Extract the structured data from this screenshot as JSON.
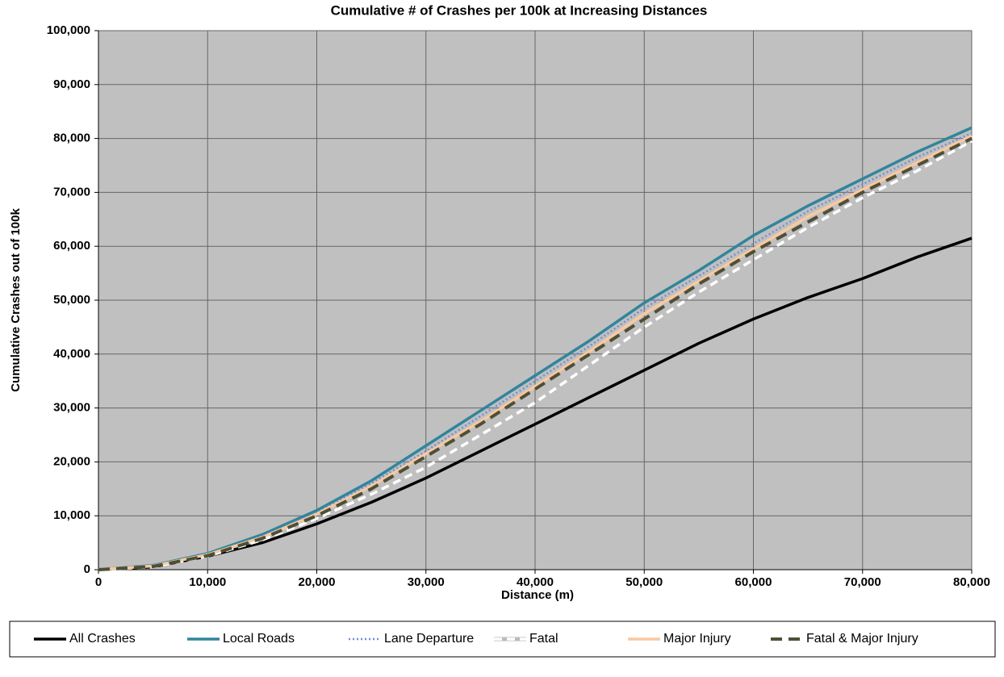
{
  "chart_data": {
    "type": "line",
    "title": "Cumulative # of Crashes per 100k at Increasing Distances",
    "x_label": "Distance (m)",
    "y_label": "Cumulative Crashes out of 100k",
    "x": [
      0,
      5000,
      10000,
      15000,
      20000,
      25000,
      30000,
      35000,
      40000,
      45000,
      50000,
      55000,
      60000,
      65000,
      70000,
      75000,
      80000
    ],
    "series": [
      {
        "name": "All Crashes",
        "color": "#000000",
        "dash": "solid",
        "values": [
          0,
          500,
          2500,
          5000,
          8500,
          12500,
          17000,
          22000,
          27000,
          32000,
          37000,
          42000,
          46500,
          50500,
          54000,
          58000,
          61500
        ]
      },
      {
        "name": "Local Roads",
        "color": "#31859c",
        "dash": "solid",
        "values": [
          0,
          800,
          3000,
          6500,
          11000,
          16500,
          23000,
          29500,
          36000,
          42500,
          49500,
          55500,
          62000,
          67500,
          72500,
          77500,
          82000
        ]
      },
      {
        "name": "Lane Departure",
        "color": "#6f8fd8",
        "dash": "dotted",
        "values": [
          0,
          700,
          2800,
          6200,
          10500,
          16000,
          22000,
          28500,
          35000,
          41500,
          48500,
          54500,
          60500,
          66500,
          71500,
          76500,
          81000
        ]
      },
      {
        "name": "Fatal",
        "color": "#ffffff",
        "dash": "dashed",
        "values": [
          0,
          500,
          2500,
          5500,
          9500,
          14000,
          19000,
          25000,
          31000,
          38000,
          45000,
          51500,
          57500,
          63500,
          69000,
          74000,
          79500
        ]
      },
      {
        "name": "Major Injury",
        "color": "#f9c9a0",
        "dash": "solid",
        "values": [
          0,
          700,
          2800,
          6000,
          10300,
          15500,
          21500,
          27500,
          34000,
          40500,
          47500,
          53500,
          59500,
          65500,
          70500,
          75500,
          80500
        ]
      },
      {
        "name": "Fatal & Major Injury",
        "color": "#4f4f37",
        "dash": "dashed",
        "values": [
          0,
          600,
          2600,
          5800,
          10000,
          15000,
          21000,
          27000,
          33500,
          40000,
          46500,
          53000,
          59000,
          64500,
          70000,
          75000,
          80000
        ]
      }
    ],
    "xlim": [
      0,
      80000
    ],
    "xticks": [
      0,
      {
        "value": 10000,
        "label": "10,000"
      },
      {
        "value": 20000,
        "label": "20,000"
      },
      {
        "value": 30000,
        "label": "30,000"
      },
      {
        "value": 40000,
        "label": "40,000"
      },
      {
        "value": 50000,
        "label": "50,000"
      },
      {
        "value": 60000,
        "label": "60,000"
      },
      {
        "value": 70000,
        "label": "70,000"
      },
      {
        "value": 80000,
        "label": "80,000"
      }
    ],
    "ylim": [
      0,
      100000
    ],
    "yticks": [
      0,
      {
        "value": 10000,
        "label": "10,000"
      },
      {
        "value": 20000,
        "label": "20,000"
      },
      {
        "value": 30000,
        "label": "30,000"
      },
      {
        "value": 40000,
        "label": "40,000"
      },
      {
        "value": 50000,
        "label": "50,000"
      },
      {
        "value": 60000,
        "label": "60,000"
      },
      {
        "value": 70000,
        "label": "70,000"
      },
      {
        "value": 80000,
        "label": "80,000"
      },
      {
        "value": 90000,
        "label": "90,000"
      },
      {
        "value": 100000,
        "label": "100,000"
      }
    ],
    "grid": true,
    "legend": "bottom"
  }
}
